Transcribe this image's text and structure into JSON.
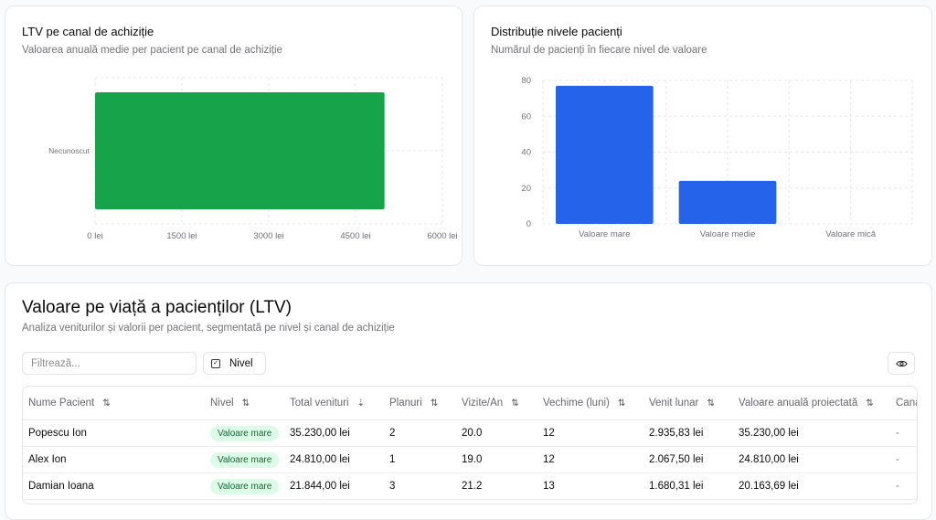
{
  "ltv_card": {
    "title": "LTV pe canal de achiziție",
    "subtitle": "Valoarea anuală medie per pacient pe canal de achiziție"
  },
  "dist_card": {
    "title": "Distribuție nivele pacienți",
    "subtitle": "Numărul de pacienți în fiecare nivel de valoare"
  },
  "chart_data": [
    {
      "type": "bar",
      "orientation": "horizontal",
      "categories": [
        "Necunoscut"
      ],
      "values": [
        5000
      ],
      "xlim": [
        0,
        6000
      ],
      "xticks": [
        "0 lei",
        "1500 lei",
        "3000 lei",
        "4500 lei",
        "6000 lei"
      ],
      "xtick_values": [
        0,
        1500,
        3000,
        4500,
        6000
      ],
      "color": "#16a34a",
      "grid": true
    },
    {
      "type": "bar",
      "categories": [
        "Valoare mare",
        "Valoare medie",
        "Valoare mică"
      ],
      "values": [
        77,
        24,
        0
      ],
      "ylim": [
        0,
        80
      ],
      "yticks": [
        "0",
        "20",
        "40",
        "60",
        "80"
      ],
      "ytick_values": [
        0,
        20,
        40,
        60,
        80
      ],
      "color": "#2563eb",
      "grid": true
    }
  ],
  "ltv_section": {
    "title": "Valoare pe viață a pacienților (LTV)",
    "subtitle": "Analiza veniturilor și valorii per pacient, segmentată pe nivel și canal de achiziție",
    "filter_placeholder": "Filtrează...",
    "nivel_button": "Nivel"
  },
  "table": {
    "columns": [
      "Nume Pacient",
      "Nivel",
      "Total venituri",
      "Planuri",
      "Vizite/An",
      "Vechime (luni)",
      "Venit lunar",
      "Valoare anuală proiectată",
      "Canal"
    ],
    "rows": [
      [
        "Popescu Ion",
        "Valoare mare",
        "35.230,00 lei",
        "2",
        "20.0",
        "12",
        "2.935,83 lei",
        "35.230,00 lei",
        "-"
      ],
      [
        "Alex Ion",
        "Valoare mare",
        "24.810,00 lei",
        "1",
        "19.0",
        "12",
        "2.067,50 lei",
        "24.810,00 lei",
        "-"
      ],
      [
        "Damian Ioana",
        "Valoare mare",
        "21.844,00 lei",
        "3",
        "21.2",
        "13",
        "1.680,31 lei",
        "20.163,69 lei",
        "-"
      ]
    ]
  }
}
